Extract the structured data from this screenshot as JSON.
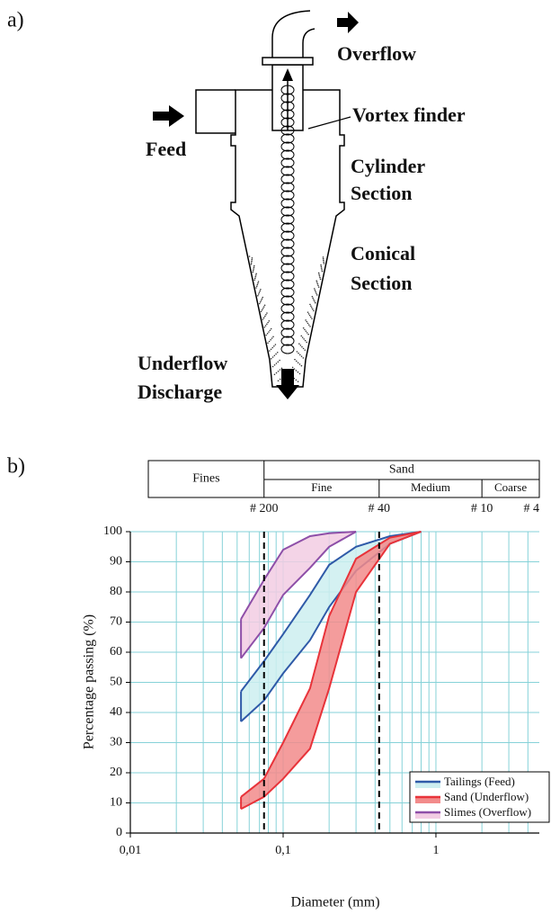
{
  "panel_a": {
    "label": "a)",
    "overflow": "Overflow",
    "vortex_finder": "Vortex finder",
    "feed": "Feed",
    "cylinder_section": [
      "Cylinder",
      "Section"
    ],
    "conical_section": [
      "Conical",
      "Section"
    ],
    "underflow_discharge": [
      "Underflow",
      "Discharge"
    ]
  },
  "panel_b": {
    "label": "b)"
  },
  "chart_data": {
    "type": "range-area",
    "x_label": "Diameter (mm)",
    "y_label": "Percentage passing (%)",
    "log_x": true,
    "xlim": [
      0.01,
      4.75
    ],
    "ylim": [
      0,
      100
    ],
    "xticks": [
      {
        "value": 0.01,
        "label": "0,01"
      },
      {
        "value": 0.1,
        "label": "0,1"
      },
      {
        "value": 1,
        "label": "1"
      }
    ],
    "xminorticks": [
      0.02,
      0.03,
      0.04,
      0.05,
      0.06,
      0.07,
      0.08,
      0.09,
      0.2,
      0.3,
      0.4,
      0.5,
      0.6,
      0.7,
      0.8,
      0.9,
      2,
      3,
      4
    ],
    "yticks": [
      0,
      10,
      20,
      30,
      40,
      50,
      60,
      70,
      80,
      90,
      100
    ],
    "grid": true,
    "grid_color": "#86d2d8",
    "reference_lines": [
      0.075,
      0.425
    ],
    "sieves": [
      {
        "value": 0.075,
        "label": "# 200"
      },
      {
        "value": 0.425,
        "label": "# 40"
      },
      {
        "value": 2,
        "label": "# 10"
      },
      {
        "value": 4.75,
        "label": "# 4"
      }
    ],
    "classification": {
      "fines": "Fines",
      "sand": "Sand",
      "fine": "Fine",
      "medium": "Medium",
      "coarse": "Coarse"
    },
    "legend": "lower right",
    "series": [
      {
        "name": "Tailings (Feed)",
        "color": "#2f5aa8",
        "fill": "#cdeef0",
        "x": [
          0.053,
          0.075,
          0.1,
          0.15,
          0.2,
          0.3,
          0.5,
          0.8
        ],
        "upper": [
          47,
          57,
          66,
          79,
          89,
          95,
          98.5,
          100
        ],
        "lower": [
          37,
          44,
          53,
          64,
          75,
          87,
          96,
          100
        ]
      },
      {
        "name": "Sand (Underflow)",
        "color": "#e8333a",
        "fill": "#f28b8b",
        "x": [
          0.053,
          0.075,
          0.1,
          0.15,
          0.2,
          0.3,
          0.5,
          0.8
        ],
        "upper": [
          12,
          18,
          30,
          48,
          72,
          91,
          98,
          100
        ],
        "lower": [
          8,
          12,
          18,
          28,
          48,
          80,
          96,
          100
        ]
      },
      {
        "name": "Slimes (Overflow)",
        "color": "#8e4fa8",
        "fill": "#f2cce3",
        "x": [
          0.053,
          0.075,
          0.1,
          0.15,
          0.2,
          0.3
        ],
        "upper": [
          71,
          84,
          94,
          98.5,
          99.5,
          100
        ],
        "lower": [
          58,
          68,
          79,
          88,
          95,
          100
        ]
      }
    ]
  }
}
